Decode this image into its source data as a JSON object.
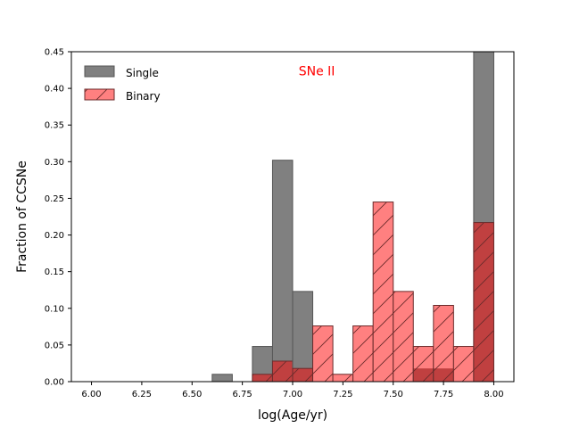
{
  "chart_data": {
    "type": "bar",
    "title": "",
    "annotation": "SNe II",
    "xlabel": "log(Age/yr)",
    "ylabel": "Fraction of CCSNe",
    "xlim": [
      5.9,
      8.1
    ],
    "ylim": [
      0,
      0.45
    ],
    "xticks": [
      "6.00",
      "6.25",
      "6.50",
      "6.75",
      "7.00",
      "7.25",
      "7.50",
      "7.75",
      "8.00"
    ],
    "yticks": [
      "0.00",
      "0.05",
      "0.10",
      "0.15",
      "0.20",
      "0.25",
      "0.30",
      "0.35",
      "0.40",
      "0.45"
    ],
    "bin_width": 0.1,
    "bin_starts": [
      6.0,
      6.1,
      6.2,
      6.3,
      6.4,
      6.5,
      6.6,
      6.7,
      6.8,
      6.9,
      7.0,
      7.1,
      7.2,
      7.3,
      7.4,
      7.5,
      7.6,
      7.7,
      7.8,
      7.9
    ],
    "legend_position": "upper-left",
    "series": [
      {
        "name": "Single",
        "color": "#808080",
        "edge": "#555555",
        "hatch": false,
        "values": [
          0,
          0,
          0,
          0,
          0,
          0,
          0.01,
          0,
          0.048,
          0.302,
          0.123,
          0,
          0,
          0,
          0,
          0,
          0.018,
          0.018,
          0,
          0.45
        ]
      },
      {
        "name": "Binary",
        "color": "#ff8080",
        "edge": "#6b2b2b",
        "hatch": true,
        "values": [
          0,
          0,
          0,
          0,
          0,
          0,
          0,
          0,
          0.01,
          0.028,
          0.018,
          0.076,
          0.01,
          0.076,
          0.245,
          0.123,
          0.048,
          0.104,
          0.048,
          0.217
        ]
      }
    ],
    "overlap_color": "#c04040"
  }
}
